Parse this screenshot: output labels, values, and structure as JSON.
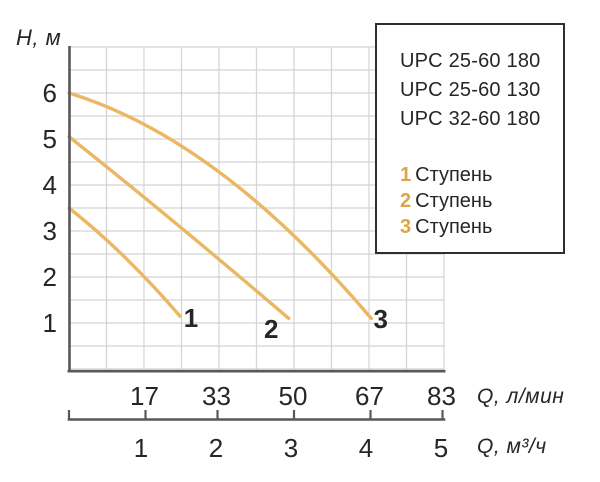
{
  "colors": {
    "background": "#ffffff",
    "curve": "#ebb763",
    "curve_label": "#dfa542",
    "axis": "#58585a",
    "grid": "#d4d4d4",
    "text": "#262626",
    "legend_border": "#2f2f2f"
  },
  "chart_data": {
    "type": "line",
    "title": "",
    "grid": true,
    "legend_position": "top-right",
    "y_axis": {
      "label": "H, м",
      "ticks": [
        "1",
        "2",
        "3",
        "4",
        "5",
        "6"
      ],
      "tick_values": [
        1,
        2,
        3,
        4,
        5,
        6
      ],
      "range": [
        0,
        7
      ],
      "grid_step": 0.5
    },
    "x_axis_primary": {
      "label": "Q, л/мин",
      "ticks": [
        "17",
        "33",
        "50",
        "67",
        "83"
      ],
      "tick_values": [
        17,
        33,
        50,
        67,
        83
      ],
      "range": [
        0,
        83.33
      ]
    },
    "x_axis_secondary": {
      "label": "Q, м³/ч",
      "ticks": [
        "1",
        "2",
        "3",
        "4",
        "5"
      ],
      "tick_values": [
        1,
        2,
        3,
        4,
        5
      ],
      "range": [
        0,
        5
      ],
      "grid_step": 0.5
    },
    "series": [
      {
        "name": "Ступень 1",
        "curve_label": "1",
        "points_q_m3h_vs_H_m": [
          [
            0,
            3.5
          ],
          [
            0.5,
            2.8
          ],
          [
            1.0,
            2.0
          ],
          [
            1.48,
            1.15
          ]
        ],
        "bezier": {
          "start": [
            0,
            3.5
          ],
          "control": [
            0.74,
            2.55
          ],
          "end": [
            1.48,
            1.15
          ]
        },
        "label_pos": [
          1.53,
          0.91
        ]
      },
      {
        "name": "Ступень 2",
        "curve_label": "2",
        "points_q_m3h_vs_H_m": [
          [
            0,
            5.05
          ],
          [
            1.0,
            3.7
          ],
          [
            2.0,
            2.3
          ],
          [
            2.93,
            1.1
          ]
        ],
        "bezier": {
          "start": [
            0,
            5.05
          ],
          "control": [
            1.35,
            3.3
          ],
          "end": [
            2.93,
            1.1
          ]
        },
        "label_pos": [
          2.6,
          0.67
        ]
      },
      {
        "name": "Ступень 3",
        "curve_label": "3",
        "points_q_m3h_vs_H_m": [
          [
            0,
            6.0
          ],
          [
            1.0,
            5.3
          ],
          [
            2.0,
            4.3
          ],
          [
            3.0,
            2.9
          ],
          [
            4.03,
            1.1
          ]
        ],
        "bezier": {
          "start": [
            0,
            6.0
          ],
          "control": [
            2.0,
            5.0
          ],
          "end": [
            4.03,
            1.1
          ]
        },
        "label_pos": [
          4.06,
          0.89
        ]
      }
    ],
    "legend": {
      "models": [
        "UPC 25-60 180",
        "UPC 25-60 130",
        "UPC 32-60 180"
      ],
      "stages": [
        {
          "num": "1",
          "label": "Ступень"
        },
        {
          "num": "2",
          "label": "Ступень"
        },
        {
          "num": "3",
          "label": "Ступень"
        }
      ]
    }
  }
}
